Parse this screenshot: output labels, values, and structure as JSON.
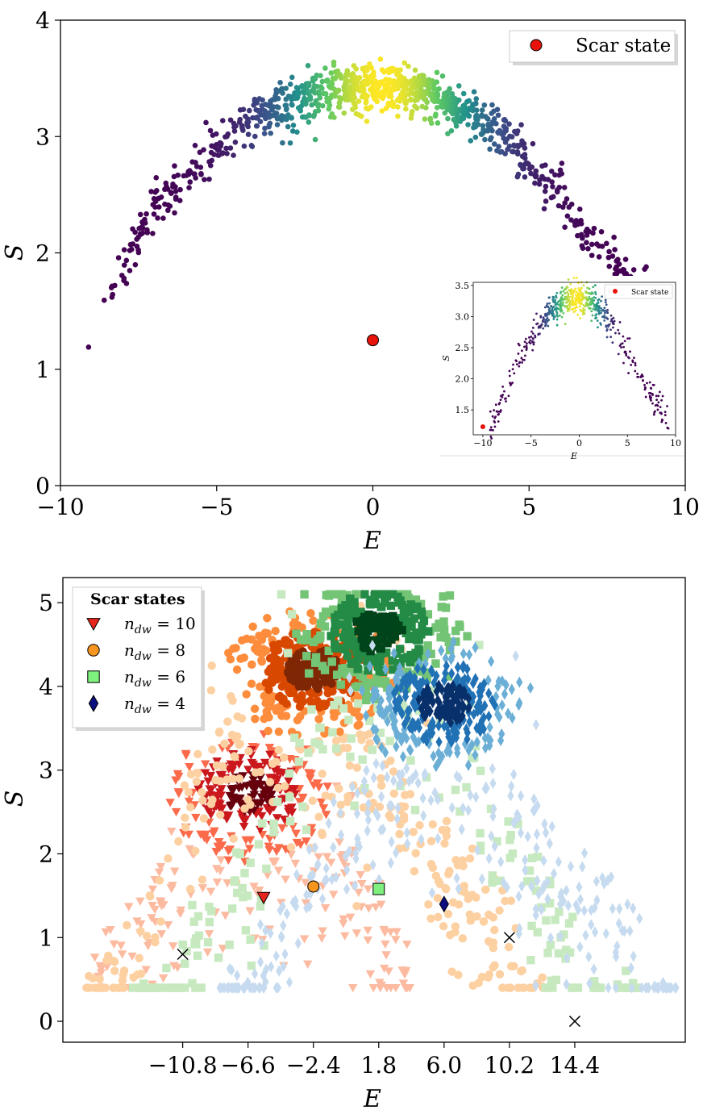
{
  "chart_data": [
    {
      "type": "scatter",
      "xlabel": "E",
      "ylabel": "S",
      "xlim": [
        -10,
        10
      ],
      "ylim": [
        0,
        4
      ],
      "xticks": [
        "−10",
        "−5",
        "0",
        "5",
        "10"
      ],
      "yticks": [
        "0",
        "1",
        "2",
        "3",
        "4"
      ],
      "colormap": [
        "#440154",
        "#3b528b",
        "#21918c",
        "#5ec962",
        "#fde725"
      ],
      "legend": {
        "position": "top-right",
        "entries": [
          {
            "label": "Scar state",
            "color": "#e8140c",
            "marker": "circle"
          }
        ]
      },
      "series": [
        {
          "name": "Scar state",
          "color": "#e8140c",
          "points": [
            [
              0.0,
              1.25
            ]
          ]
        }
      ],
      "bulk_envelope": {
        "points": [
          [
            -9.1,
            1.19
          ],
          [
            -8.3,
            1.65
          ],
          [
            -7.8,
            2.0
          ],
          [
            -7.0,
            2.4
          ],
          [
            -6.0,
            2.62
          ],
          [
            -5.0,
            2.9
          ],
          [
            -4.0,
            3.1
          ],
          [
            -3.0,
            3.25
          ],
          [
            -2.0,
            3.34
          ],
          [
            -1.0,
            3.4
          ],
          [
            0.0,
            3.42
          ],
          [
            0.5,
            3.41
          ],
          [
            1.0,
            3.4
          ],
          [
            2.0,
            3.33
          ],
          [
            3.0,
            3.22
          ],
          [
            4.0,
            3.05
          ],
          [
            5.0,
            2.8
          ],
          [
            6.0,
            2.55
          ],
          [
            6.6,
            2.25
          ],
          [
            7.8,
            1.87
          ],
          [
            8.7,
            1.86
          ]
        ],
        "spread": 0.1,
        "count": 1000
      },
      "inset": {
        "type": "scatter",
        "xlabel": "E",
        "ylabel": "S",
        "xlim": [
          -11,
          10
        ],
        "ylim": [
          1.1,
          3.55
        ],
        "xticks": [
          "−10",
          "−5",
          "0",
          "5",
          "10"
        ],
        "yticks": [
          "1.5",
          "2.0",
          "2.5",
          "3.0",
          "3.5"
        ],
        "legend": {
          "position": "top-right",
          "entries": [
            {
              "label": "Scar state",
              "color": "#e8140c",
              "marker": "circle"
            }
          ]
        },
        "series": [
          {
            "name": "Scar state",
            "color": "#e8140c",
            "points": [
              [
                -10.0,
                1.23
              ]
            ]
          }
        ],
        "bulk_envelope": {
          "points": [
            [
              -9.5,
              1.15
            ],
            [
              -8.5,
              1.45
            ],
            [
              -7.0,
              2.0
            ],
            [
              -5.5,
              2.55
            ],
            [
              -4.0,
              2.9
            ],
            [
              -2.5,
              3.15
            ],
            [
              -1.0,
              3.28
            ],
            [
              0.0,
              3.3
            ],
            [
              1.0,
              3.25
            ],
            [
              2.5,
              3.05
            ],
            [
              4.0,
              2.7
            ],
            [
              5.5,
              2.3
            ],
            [
              7.0,
              1.85
            ],
            [
              8.5,
              1.45
            ],
            [
              9.5,
              1.2
            ]
          ],
          "spread": 0.12,
          "count": 600
        }
      }
    },
    {
      "type": "scatter",
      "xlabel": "E",
      "ylabel": "S",
      "ylim": [
        -0.25,
        5.3
      ],
      "yticks": [
        "0",
        "1",
        "2",
        "3",
        "4",
        "5"
      ],
      "xticks": [
        "−10.8",
        "−6.6",
        "−2.4",
        "1.8",
        "6.0",
        "10.2",
        "14.4"
      ],
      "legend": {
        "position": "top-left",
        "title": "Scar states",
        "entries": [
          {
            "label": "n_dw = 10",
            "display": "ndw = 10",
            "marker": "triangle-down",
            "color": "#e8251d"
          },
          {
            "label": "n_dw = 8",
            "display": "ndw = 8",
            "marker": "circle",
            "color": "#f7951e"
          },
          {
            "label": "n_dw = 6",
            "display": "ndw = 6",
            "marker": "square",
            "color": "#7ef07e"
          },
          {
            "label": "n_dw = 4",
            "display": "ndw = 4",
            "marker": "diamond",
            "color": "#0c0f80"
          }
        ]
      },
      "series": [
        {
          "name": "n_dw = 10",
          "marker": "triangle-down",
          "colors": [
            "#fcbba1",
            "#fb6a4a",
            "#cb181d",
            "#67000d"
          ],
          "center": [
            -6.6,
            2.75
          ],
          "envelope": [
            [
              -16.5,
              1.1
            ],
            [
              -13,
              1.8
            ],
            [
              -10,
              2.5
            ],
            [
              -7,
              2.85
            ],
            [
              -4,
              2.8
            ],
            [
              -1,
              2.4
            ],
            [
              2,
              1.7
            ],
            [
              4,
              1.1
            ]
          ],
          "count": 420,
          "scar": [
            -5.6,
            1.48
          ]
        },
        {
          "name": "n_dw = 8",
          "marker": "circle",
          "colors": [
            "#fdd0a2",
            "#fd8d3c",
            "#d94801",
            "#7f2704"
          ],
          "center": [
            -2.4,
            4.2
          ],
          "envelope": [
            [
              -17,
              0.65
            ],
            [
              -14,
              1.5
            ],
            [
              -11,
              3.0
            ],
            [
              -8,
              3.9
            ],
            [
              -4,
              4.25
            ],
            [
              -1,
              4.2
            ],
            [
              2,
              3.6
            ],
            [
              6,
              2.6
            ],
            [
              10,
              1.6
            ],
            [
              13,
              0.6
            ]
          ],
          "count": 700,
          "scar": [
            -2.4,
            1.61
          ]
        },
        {
          "name": "n_dw = 6",
          "marker": "square",
          "colors": [
            "#c7e9c0",
            "#74c476",
            "#238b45",
            "#00441b"
          ],
          "center": [
            1.8,
            4.65
          ],
          "envelope": [
            [
              -14,
              0.55
            ],
            [
              -10,
              1.6
            ],
            [
              -6,
              2.7
            ],
            [
              -2,
              4.3
            ],
            [
              1,
              4.75
            ],
            [
              4,
              4.6
            ],
            [
              8,
              3.4
            ],
            [
              12,
              2.2
            ],
            [
              16,
              1.3
            ],
            [
              18.5,
              0.55
            ]
          ],
          "count": 520,
          "scar": [
            1.8,
            1.58
          ]
        },
        {
          "name": "n_dw = 4",
          "marker": "diamond",
          "colors": [
            "#c6dbef",
            "#6baed6",
            "#2171b5",
            "#08306b"
          ],
          "center": [
            6.0,
            3.8
          ],
          "envelope": [
            [
              -8.5,
              0.6
            ],
            [
              -5,
              1.5
            ],
            [
              -1,
              2.7
            ],
            [
              2,
              3.6
            ],
            [
              5,
              3.9
            ],
            [
              8,
              3.6
            ],
            [
              12,
              2.8
            ],
            [
              16,
              1.9
            ],
            [
              19,
              1.4
            ],
            [
              21,
              0.5
            ]
          ],
          "count": 650,
          "scar": [
            6.0,
            1.4
          ]
        }
      ],
      "reference_points": [
        {
          "marker": "x",
          "points": [
            [
              -10.8,
              0.8
            ],
            [
              10.2,
              1.0
            ],
            [
              14.4,
              0.0
            ]
          ]
        }
      ],
      "xlim": [
        -18.5,
        21.5
      ]
    }
  ]
}
